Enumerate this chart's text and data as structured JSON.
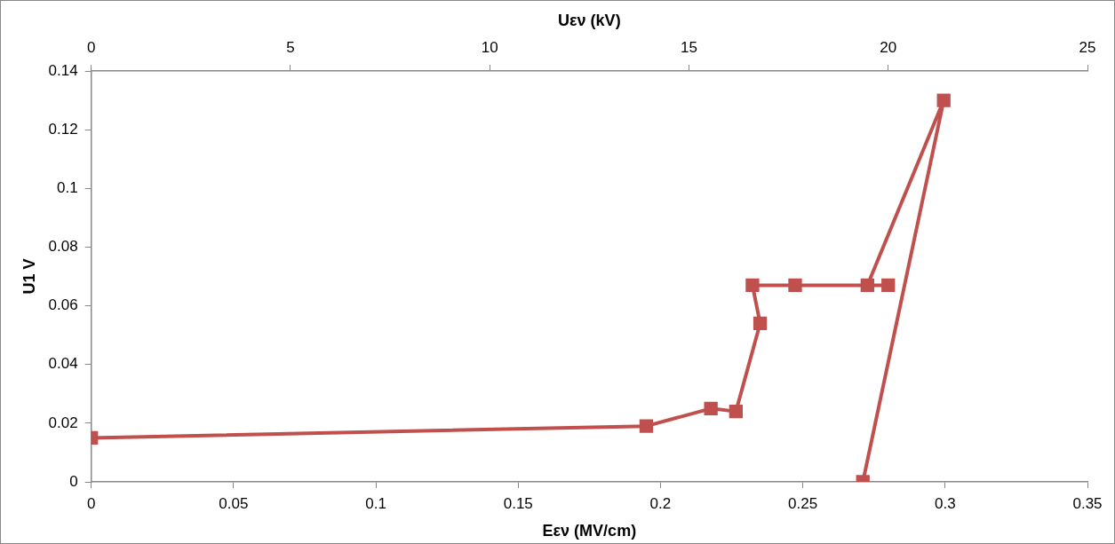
{
  "chart_data": {
    "type": "line",
    "xlabel": "Eεν (MV/cm)",
    "ylabel": "U1 V",
    "x2label": "Uεν (kV)",
    "x": [
      0,
      0.195,
      0.2177,
      0.2265,
      0.235,
      0.2323,
      0.2473,
      0.28,
      0.2727,
      0.2995,
      0.2711
    ],
    "series": [
      {
        "color": "#c0504d",
        "values": [
          0.015,
          0.019,
          0.025,
          0.024,
          0.054,
          0.067,
          0.067,
          0.067,
          0.067,
          0.13,
          0
        ]
      }
    ],
    "xlim": [
      0,
      0.35
    ],
    "xticks": [
      0,
      0.05,
      0.1,
      0.15,
      0.2,
      0.25,
      0.3,
      0.35
    ],
    "ylim": [
      0,
      0.14
    ],
    "yticks": [
      0,
      0.02,
      0.04,
      0.06,
      0.08,
      0.1,
      0.12,
      0.14
    ],
    "x2lim": [
      0,
      25
    ],
    "x2ticks": [
      0,
      5,
      10,
      15,
      20,
      25
    ],
    "marker": "square",
    "grid": false,
    "legend": false
  }
}
